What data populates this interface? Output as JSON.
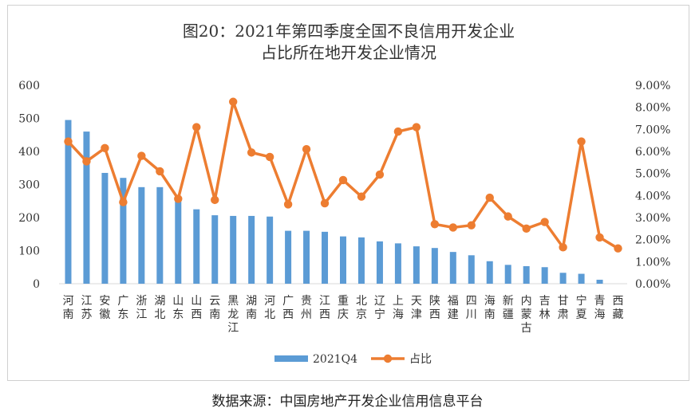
{
  "chart_data": {
    "type": "bar",
    "title_lines": [
      "图20：2021年第四季度全国不良信用开发企业",
      "占比所在地开发企业情况"
    ],
    "categories": [
      [
        "河",
        "南"
      ],
      [
        "江",
        "苏"
      ],
      [
        "安",
        "徽"
      ],
      [
        "广",
        "东"
      ],
      [
        "浙",
        "江"
      ],
      [
        "湖",
        "北"
      ],
      [
        "山",
        "东"
      ],
      [
        "山",
        "西"
      ],
      [
        "云",
        "南"
      ],
      [
        "黑",
        "龙",
        "江"
      ],
      [
        "湖",
        "南"
      ],
      [
        "河",
        "北"
      ],
      [
        "广",
        "西"
      ],
      [
        "贵",
        "州"
      ],
      [
        "江",
        "西"
      ],
      [
        "重",
        "庆"
      ],
      [
        "北",
        "京"
      ],
      [
        "辽",
        "宁"
      ],
      [
        "上",
        "海"
      ],
      [
        "天",
        "津"
      ],
      [
        "陕",
        "西"
      ],
      [
        "福",
        "建"
      ],
      [
        "四",
        "川"
      ],
      [
        "海",
        "南"
      ],
      [
        "新",
        "疆"
      ],
      [
        "内",
        "蒙",
        "古"
      ],
      [
        "吉",
        "林"
      ],
      [
        "甘",
        "肃"
      ],
      [
        "宁",
        "夏"
      ],
      [
        "青",
        "海"
      ],
      [
        "西",
        "藏"
      ]
    ],
    "series": [
      {
        "name": "2021Q4",
        "type": "bar",
        "axis": "left",
        "color": "#5B9BD5",
        "values": [
          495,
          460,
          335,
          320,
          292,
          292,
          255,
          225,
          207,
          205,
          205,
          203,
          160,
          160,
          157,
          143,
          140,
          128,
          122,
          113,
          108,
          96,
          86,
          68,
          57,
          53,
          50,
          33,
          30,
          12,
          0
        ]
      },
      {
        "name": "占比",
        "type": "line",
        "axis": "right",
        "color": "#ED7D31",
        "values": [
          6.45,
          5.55,
          6.15,
          3.7,
          5.8,
          5.1,
          3.85,
          7.1,
          3.8,
          8.25,
          5.95,
          5.75,
          3.6,
          6.1,
          3.65,
          4.7,
          3.95,
          4.95,
          6.9,
          7.1,
          2.7,
          2.55,
          2.65,
          3.9,
          3.05,
          2.5,
          2.8,
          1.65,
          6.45,
          2.1,
          1.6
        ]
      }
    ],
    "y_left": {
      "min": 0,
      "max": 600,
      "ticks": [
        "0",
        "100",
        "200",
        "300",
        "400",
        "500",
        "600"
      ]
    },
    "y_right": {
      "min": 0,
      "max": 9,
      "ticks": [
        "0.00%",
        "1.00%",
        "2.00%",
        "3.00%",
        "4.00%",
        "5.00%",
        "6.00%",
        "7.00%",
        "8.00%",
        "9.00%"
      ]
    },
    "grid": false,
    "legend_position": "bottom-center"
  },
  "source_text": "数据来源：中国房地产开发企业信用信息平台"
}
